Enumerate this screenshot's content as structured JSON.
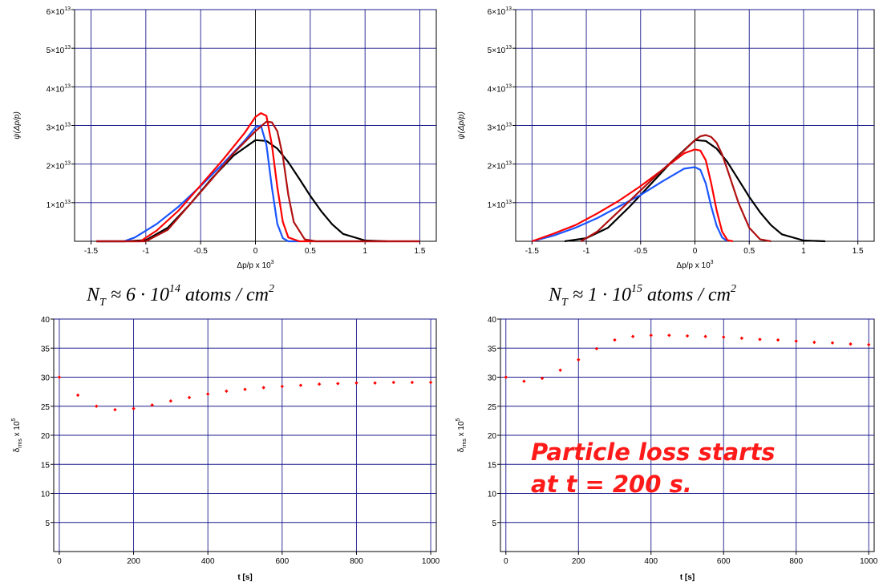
{
  "colors": {
    "grid": "#1a1a8c",
    "black": "#000000",
    "blue": "#1a55ff",
    "red": "#ff0000",
    "darkred": "#b01010",
    "dot": "#ff0000"
  },
  "captions": {
    "left": "N_T ≈ 6·10^14 atoms/cm^2",
    "right": "N_T ≈ 1·10^15 atoms/cm^2"
  },
  "annotation": {
    "line1": "Particle loss starts",
    "line2": "at t = 200 s."
  },
  "chart_data": [
    {
      "type": "line",
      "xlabel": "Δp/p x 10^3",
      "ylabel": "ψ(Δp/p)",
      "xlim": [
        -1.65,
        1.65
      ],
      "ylim": [
        0,
        6
      ],
      "xticks": [
        -1.5,
        -1,
        -0.5,
        0,
        0.5,
        1,
        1.5
      ],
      "xticklabels": [
        "-1.5",
        "-1",
        "-0.5",
        "0",
        "0.5",
        "1",
        "1.5"
      ],
      "yticks": [
        1,
        2,
        3,
        4,
        5,
        6
      ],
      "yticklabels": [
        "1×10^13",
        "2×10^13",
        "3×10^13",
        "4×10^13",
        "5×10^13",
        "6×10^13"
      ],
      "grid": true,
      "series": [
        {
          "color": "black",
          "x": [
            -1.45,
            -1.2,
            -1.0,
            -0.8,
            -0.6,
            -0.4,
            -0.2,
            0.0,
            0.1,
            0.2,
            0.3,
            0.4,
            0.5,
            0.6,
            0.7,
            0.8,
            1.0,
            1.2
          ],
          "y": [
            0,
            0,
            0.03,
            0.35,
            0.95,
            1.62,
            2.22,
            2.62,
            2.6,
            2.4,
            2.05,
            1.62,
            1.18,
            0.78,
            0.44,
            0.19,
            0.02,
            0
          ]
        },
        {
          "color": "blue",
          "x": [
            -1.45,
            -1.2,
            -1.1,
            -0.9,
            -0.7,
            -0.5,
            -0.3,
            -0.1,
            0.0,
            0.05,
            0.1,
            0.15,
            0.2,
            0.25,
            0.3,
            0.4
          ],
          "y": [
            0,
            0,
            0.1,
            0.45,
            0.9,
            1.43,
            2.0,
            2.6,
            2.95,
            3.0,
            2.5,
            1.4,
            0.45,
            0.08,
            0,
            0
          ]
        },
        {
          "color": "red",
          "x": [
            -1.45,
            -1.05,
            -0.9,
            -0.7,
            -0.5,
            -0.3,
            -0.1,
            0.0,
            0.05,
            0.1,
            0.15,
            0.2,
            0.25,
            0.3,
            0.4,
            0.6,
            1.5
          ],
          "y": [
            0,
            0,
            0.28,
            0.8,
            1.45,
            2.1,
            2.8,
            3.22,
            3.32,
            3.25,
            2.5,
            1.4,
            0.5,
            0.1,
            0,
            0,
            0
          ]
        },
        {
          "color": "darkred",
          "x": [
            -1.45,
            -1.0,
            -0.8,
            -0.6,
            -0.4,
            -0.2,
            0.0,
            0.1,
            0.15,
            0.2,
            0.25,
            0.3,
            0.35,
            0.45,
            0.55,
            1.5
          ],
          "y": [
            0,
            0,
            0.3,
            0.95,
            1.6,
            2.28,
            2.85,
            3.1,
            3.08,
            2.85,
            2.2,
            1.2,
            0.5,
            0.05,
            0,
            0
          ]
        }
      ]
    },
    {
      "type": "line",
      "xlabel": "Δp/p x 10^3",
      "ylabel": "ψ(Δp/p)",
      "xlim": [
        -1.65,
        1.65
      ],
      "ylim": [
        0,
        6
      ],
      "xticks": [
        -1.5,
        -1,
        -0.5,
        0,
        0.5,
        1,
        1.5
      ],
      "xticklabels": [
        "-1.5",
        "-1",
        "-0.5",
        "0",
        "0.5",
        "1",
        "1.5"
      ],
      "yticks": [
        1,
        2,
        3,
        4,
        5,
        6
      ],
      "yticklabels": [
        "1×10^13",
        "2×10^13",
        "3×10^13",
        "4×10^13",
        "5×10^13",
        "6×10^13"
      ],
      "grid": true,
      "series": [
        {
          "color": "black",
          "x": [
            -1.2,
            -1.0,
            -0.8,
            -0.6,
            -0.4,
            -0.2,
            0.0,
            0.1,
            0.2,
            0.3,
            0.4,
            0.5,
            0.6,
            0.7,
            0.8,
            1.0,
            1.2
          ],
          "y": [
            0,
            0.08,
            0.35,
            0.9,
            1.5,
            2.1,
            2.62,
            2.6,
            2.4,
            2.05,
            1.6,
            1.15,
            0.75,
            0.42,
            0.18,
            0.02,
            0
          ]
        },
        {
          "color": "blue",
          "x": [
            -1.5,
            -1.3,
            -1.1,
            -0.9,
            -0.7,
            -0.5,
            -0.3,
            -0.1,
            0.0,
            0.05,
            0.1,
            0.15,
            0.2,
            0.25,
            0.3
          ],
          "y": [
            0,
            0.15,
            0.35,
            0.6,
            0.9,
            1.2,
            1.55,
            1.88,
            1.92,
            1.85,
            1.5,
            0.9,
            0.4,
            0.1,
            0
          ]
        },
        {
          "color": "red",
          "x": [
            -1.5,
            -1.3,
            -1.1,
            -0.9,
            -0.7,
            -0.5,
            -0.3,
            -0.1,
            0.0,
            0.05,
            0.1,
            0.15,
            0.2,
            0.25,
            0.3,
            0.35
          ],
          "y": [
            0,
            0.2,
            0.42,
            0.72,
            1.05,
            1.43,
            1.85,
            2.28,
            2.38,
            2.35,
            2.1,
            1.5,
            0.8,
            0.25,
            0.03,
            0
          ]
        },
        {
          "color": "darkred",
          "x": [
            -1.05,
            -0.9,
            -0.7,
            -0.5,
            -0.3,
            -0.1,
            0.0,
            0.05,
            0.1,
            0.15,
            0.2,
            0.25,
            0.3,
            0.4,
            0.5,
            0.6,
            0.7
          ],
          "y": [
            0,
            0.25,
            0.78,
            1.32,
            1.85,
            2.35,
            2.62,
            2.72,
            2.75,
            2.7,
            2.55,
            2.25,
            1.85,
            1.0,
            0.35,
            0.05,
            0
          ]
        }
      ]
    },
    {
      "type": "scatter",
      "xlabel": "t [s]",
      "ylabel": "δrms x 10^5",
      "xlim": [
        -15,
        1015
      ],
      "ylim": [
        0,
        40
      ],
      "xticks": [
        0,
        200,
        400,
        600,
        800,
        1000
      ],
      "xticklabels": [
        "0",
        "200",
        "400",
        "600",
        "800",
        "1000"
      ],
      "yticks": [
        5,
        10,
        15,
        20,
        25,
        30,
        35,
        40
      ],
      "yticklabels": [
        "5",
        "10",
        "15",
        "20",
        "25",
        "30",
        "35",
        "40"
      ],
      "grid": true,
      "series": [
        {
          "color": "dot",
          "x": [
            0,
            50,
            100,
            150,
            200,
            250,
            300,
            350,
            400,
            450,
            500,
            550,
            600,
            650,
            700,
            750,
            800,
            850,
            900,
            950,
            1000
          ],
          "y": [
            30.0,
            26.9,
            25.0,
            24.4,
            24.6,
            25.2,
            25.9,
            26.5,
            27.1,
            27.6,
            27.9,
            28.2,
            28.4,
            28.6,
            28.8,
            28.9,
            29.0,
            29.0,
            29.1,
            29.1,
            29.1
          ]
        }
      ]
    },
    {
      "type": "scatter",
      "xlabel": "t [s]",
      "ylabel": "δrms x 10^5",
      "xlim": [
        -15,
        1015
      ],
      "ylim": [
        0,
        40
      ],
      "xticks": [
        0,
        200,
        400,
        600,
        800,
        1000
      ],
      "xticklabels": [
        "0",
        "200",
        "400",
        "600",
        "800",
        "1000"
      ],
      "yticks": [
        5,
        10,
        15,
        20,
        25,
        30,
        35,
        40
      ],
      "yticklabels": [
        "5",
        "10",
        "15",
        "20",
        "25",
        "30",
        "35",
        "40"
      ],
      "grid": true,
      "series": [
        {
          "color": "dot",
          "x": [
            0,
            50,
            100,
            150,
            200,
            250,
            300,
            350,
            400,
            450,
            500,
            550,
            600,
            650,
            700,
            750,
            800,
            850,
            900,
            950,
            1000
          ],
          "y": [
            30.0,
            29.3,
            29.8,
            31.2,
            33.0,
            34.9,
            36.4,
            37.0,
            37.2,
            37.2,
            37.1,
            37.0,
            36.9,
            36.7,
            36.5,
            36.4,
            36.2,
            36.0,
            35.9,
            35.7,
            35.6
          ]
        }
      ]
    }
  ]
}
